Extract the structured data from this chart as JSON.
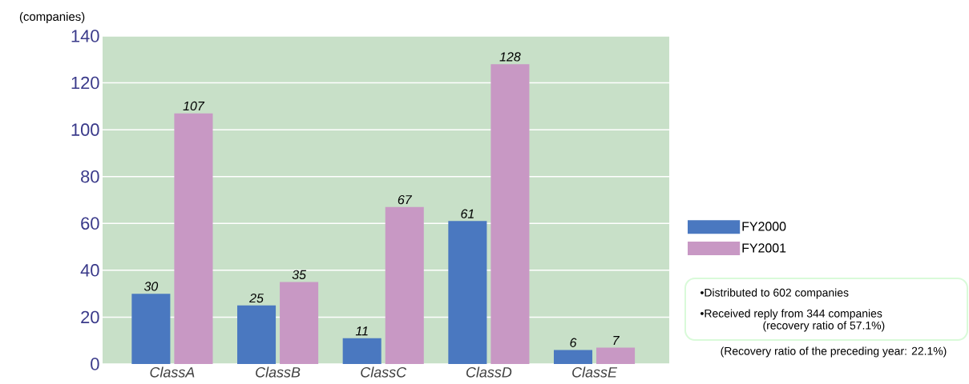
{
  "chart_data": {
    "type": "bar",
    "ylabel": "(companies)",
    "categories": [
      "ClassA",
      "ClassB",
      "ClassC",
      "ClassD",
      "ClassE"
    ],
    "series": [
      {
        "name": "FY2000",
        "color": "#4a78c0",
        "values": [
          30,
          25,
          11,
          61,
          6
        ]
      },
      {
        "name": "FY2001",
        "color": "#c898c4",
        "values": [
          107,
          35,
          67,
          128,
          7
        ]
      }
    ],
    "ylim": [
      0,
      140
    ],
    "yticks": [
      0,
      20,
      40,
      60,
      80,
      100,
      120,
      140
    ],
    "grid": "y",
    "legend": "right",
    "data_labels": true,
    "annotations": [
      "•Distributed to 602 companies",
      "•Received reply from 344 companies",
      "(recovery ratio of 57.1%)",
      "(Recovery ratio of the preceding year: 22.1%)"
    ]
  }
}
